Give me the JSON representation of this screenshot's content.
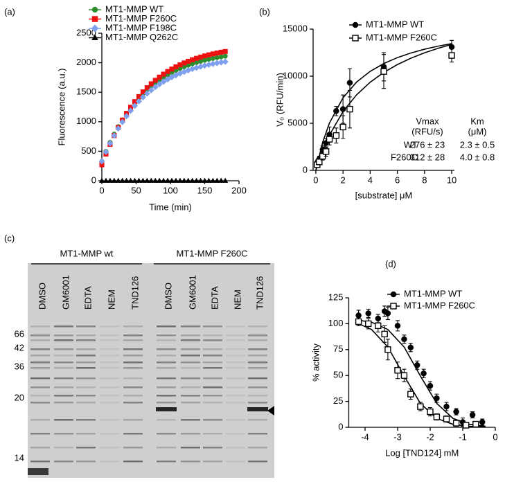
{
  "chart_data": [
    {
      "type": "scatter",
      "panel": "(a)",
      "x_label": "Time (min)",
      "y_label": "Fluorescence (a.u.)",
      "xlim": [
        0,
        200
      ],
      "xticks": [
        0,
        50,
        100,
        150,
        200
      ],
      "ylim": [
        0,
        2500
      ],
      "yticks": [
        0,
        500,
        1000,
        1500,
        2000,
        2500
      ],
      "legend": "top-left",
      "legend_text_colored": true,
      "x": [
        0,
        6,
        12,
        18,
        24,
        30,
        36,
        42,
        48,
        54,
        60,
        66,
        72,
        78,
        84,
        90,
        96,
        102,
        108,
        114,
        120,
        126,
        132,
        138,
        144,
        150,
        156,
        162,
        168,
        174,
        180
      ],
      "series": [
        {
          "name": "MT1-MMP WT",
          "color": "#2e8b2e",
          "marker": "circle",
          "filled": true,
          "values": [
            330,
            498,
            650,
            790,
            917,
            1032,
            1138,
            1234,
            1322,
            1402,
            1475,
            1542,
            1602,
            1658,
            1708,
            1754,
            1796,
            1834,
            1869,
            1901,
            1930,
            1957,
            1981,
            2003,
            2023,
            2041,
            2058,
            2073,
            2087,
            2099,
            2111
          ]
        },
        {
          "name": "MT1-MMP F260C",
          "color": "#ee1111",
          "marker": "square",
          "filled": true,
          "values": [
            270,
            451,
            616,
            766,
            903,
            1028,
            1142,
            1246,
            1341,
            1427,
            1506,
            1577,
            1643,
            1703,
            1757,
            1807,
            1852,
            1893,
            1931,
            1965,
            1997,
            2025,
            2051,
            2075,
            2096,
            2116,
            2134,
            2150,
            2165,
            2179,
            2191
          ]
        },
        {
          "name": "MT1-MMP F198C",
          "color": "#7fa0ee",
          "marker": "diamond",
          "filled": true,
          "values": [
            330,
            489,
            633,
            765,
            886,
            995,
            1095,
            1187,
            1270,
            1346,
            1415,
            1478,
            1535,
            1588,
            1636,
            1679,
            1719,
            1755,
            1788,
            1818,
            1846,
            1871,
            1894,
            1915,
            1934,
            1951,
            1967,
            1981,
            1994,
            2006,
            2017
          ]
        },
        {
          "name": "MT1-MMP Q262C",
          "color": "#000000",
          "marker": "triangle",
          "filled": true,
          "values": [
            0,
            0,
            0,
            0,
            0,
            0,
            0,
            0,
            0,
            0,
            0,
            0,
            0,
            0,
            0,
            0,
            0,
            0,
            0,
            0,
            0,
            0,
            0,
            0,
            0,
            0,
            0,
            0,
            0,
            0,
            0
          ]
        }
      ]
    },
    {
      "type": "scatter",
      "panel": "(b)",
      "x_label": "[substrate] μM",
      "y_label": "V₀ (RFU/min)",
      "xlim": [
        -0.2,
        10.2
      ],
      "xticks": [
        0,
        2,
        4,
        6,
        8,
        10
      ],
      "ylim": [
        0,
        15000
      ],
      "yticks": [
        0,
        5000,
        10000,
        15000
      ],
      "legend": "top-left",
      "legend_text_colored": false,
      "series": [
        {
          "name": "MT1-MMP WT",
          "color": "#000000",
          "marker": "circle",
          "filled": true,
          "x": [
            0.1,
            0.25,
            0.5,
            0.75,
            1,
            1.5,
            2,
            2.5,
            5,
            10
          ],
          "values": [
            800,
            1200,
            2200,
            2900,
            3800,
            6300,
            6500,
            9300,
            11000,
            13100
          ],
          "errors": [
            300,
            300,
            400,
            500,
            800,
            500,
            1500,
            1500,
            1500,
            700
          ]
        },
        {
          "name": "MT1-MMP F260C",
          "color": "#000000",
          "marker": "square",
          "filled": false,
          "x": [
            0.1,
            0.25,
            0.5,
            0.75,
            1,
            1.5,
            2,
            2.5,
            5,
            10
          ],
          "values": [
            600,
            900,
            1500,
            2000,
            3300,
            3700,
            4600,
            6500,
            10500,
            12200
          ],
          "errors": [
            300,
            300,
            400,
            500,
            600,
            800,
            1200,
            2000,
            1800,
            700
          ]
        }
      ],
      "fits": [
        {
          "color": "#000000",
          "x": [
            0,
            0.5,
            1,
            2,
            3,
            4,
            5,
            6,
            7,
            8,
            9,
            10
          ],
          "values": [
            0,
            2957,
            5018,
            7702,
            9374,
            10514,
            11342,
            11971,
            12465,
            12862,
            13189,
            13463
          ]
        },
        {
          "color": "#000000",
          "x": [
            0,
            0.5,
            1,
            2,
            3,
            4,
            5,
            6,
            7,
            8,
            9,
            10
          ],
          "values": [
            0,
            2080,
            3744,
            6240,
            8023,
            9360,
            10400,
            11232,
            11913,
            12480,
            12960,
            13371
          ]
        }
      ],
      "annotations": [
        "Vmax",
        "(RFU/s)",
        "Km",
        "(μM)",
        "WT",
        "276 ± 23",
        "2.3 ± 0.5",
        "F260C",
        "312 ± 28",
        "4.0 ± 0.8"
      ]
    },
    {
      "type": "scatter",
      "panel": "(d)",
      "x_label": "Log [TND124] mM",
      "y_label": "% activity",
      "xlim": [
        -4.5,
        0
      ],
      "xticks": [
        -4,
        -3,
        -2,
        -1,
        0
      ],
      "ylim": [
        0,
        125
      ],
      "yticks": [
        0,
        25,
        50,
        75,
        100,
        125
      ],
      "legend": "top-right",
      "legend_text_colored": false,
      "series": [
        {
          "name": "MT1-MMP WT",
          "color": "#000000",
          "marker": "circle",
          "filled": true,
          "x": [
            -4.2,
            -3.9,
            -3.6,
            -3.4,
            -3.3,
            -3.0,
            -2.8,
            -2.6,
            -2.4,
            -2.2,
            -2.0,
            -1.8,
            -1.5,
            -1.2,
            -1.0,
            -0.7,
            -0.4
          ],
          "values": [
            108,
            110,
            105,
            112,
            110,
            98,
            85,
            77,
            60,
            52,
            40,
            28,
            20,
            15,
            5,
            12,
            5
          ],
          "errors": [
            5,
            4,
            4,
            5,
            6,
            5,
            4,
            4,
            4,
            4,
            4,
            4,
            4,
            3,
            4,
            3,
            3
          ]
        },
        {
          "name": "MT1-MMP F260C",
          "color": "#000000",
          "marker": "square",
          "filled": false,
          "x": [
            -4.2,
            -3.9,
            -3.6,
            -3.4,
            -3.3,
            -3.0,
            -2.8,
            -2.6,
            -2.3,
            -2.0,
            -1.8,
            -1.5,
            -1.2,
            -0.9,
            -0.6
          ],
          "values": [
            102,
            100,
            98,
            90,
            75,
            55,
            50,
            32,
            20,
            15,
            10,
            8,
            4,
            2,
            3
          ],
          "errors": [
            4,
            5,
            6,
            8,
            10,
            8,
            6,
            5,
            4,
            4,
            3,
            3,
            3,
            2,
            2
          ]
        }
      ],
      "fits": [
        {
          "color": "#000000",
          "x": [
            -4.3,
            -3.8,
            -3.3,
            -2.8,
            -2.3,
            -1.8,
            -1.3,
            -0.8,
            -0.3
          ],
          "values": [
            103.8,
            101.4,
            94.4,
            77.5,
            49.5,
            23.1,
            8.6,
            2.9,
            0.9
          ]
        },
        {
          "color": "#000000",
          "x": [
            -4.3,
            -3.8,
            -3.3,
            -2.8,
            -2.3,
            -1.8,
            -1.3,
            -0.8,
            -0.3
          ],
          "values": [
            101.4,
            94.4,
            77.5,
            49.5,
            23.1,
            8.6,
            2.9,
            0.9,
            0.3
          ]
        }
      ]
    }
  ],
  "gel": {
    "panel": "(c)",
    "groups": [
      "MT1-MMP wt",
      "MT1-MMP F260C"
    ],
    "lanes": [
      "DMSO",
      "GM6001",
      "EDTA",
      "NEM",
      "TND126",
      "DMSO",
      "GM6001",
      "EDTA",
      "NEM",
      "TND126"
    ],
    "markers": [
      "66",
      "42",
      "36",
      "20",
      "14"
    ]
  }
}
